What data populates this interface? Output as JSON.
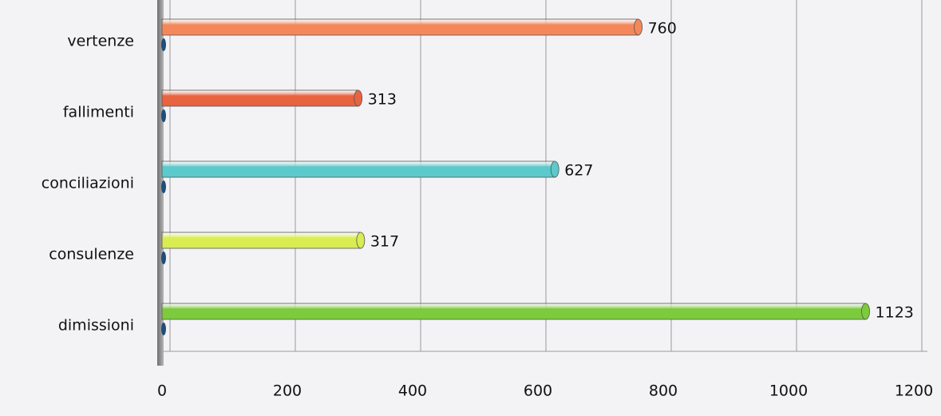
{
  "chart_data": {
    "type": "bar",
    "orientation": "horizontal",
    "categories": [
      "vertenze",
      "fallimenti",
      "conciliazioni",
      "consulenze",
      "dimissioni"
    ],
    "values": [
      760,
      313,
      627,
      317,
      1123
    ],
    "colors": [
      "#f4885a",
      "#e8633f",
      "#5cc9cc",
      "#d9ec52",
      "#7ccb3c"
    ],
    "xlim": [
      0,
      1200
    ],
    "xticks": [
      0,
      200,
      400,
      600,
      800,
      1000,
      1200
    ],
    "grid": true
  }
}
